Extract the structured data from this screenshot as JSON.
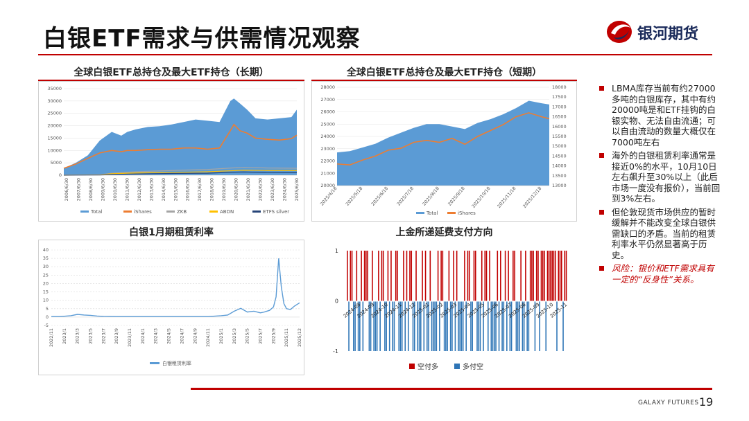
{
  "page": {
    "title": "白银ETF需求与供需情况观察",
    "logo_text": "银河期货",
    "footer": "GALAXY FUTURES",
    "page_number": "19"
  },
  "bullets": [
    {
      "text": "LBMA库存当前有约27000多吨的白银库存，其中有约20000吨是和ETF挂钩的白银实物、无法自由流通；可以自由流动的数量大概仅在7000吨左右",
      "risk": false
    },
    {
      "text": "海外的白银租赁利率通常是接近0%的水平，10月10日左右飙升至30%以上（此后市场一度没有报价），当前回到3%左右。",
      "risk": false
    },
    {
      "text": "但伦敦现货市场供应的暂时缓解并不能改变全球白银供需缺口的矛盾。当前的租赁利率水平仍然显著高于历史。",
      "risk": false
    },
    {
      "text": "风险：银价和ETF需求具有一定的“反身性”关系。",
      "risk": true
    }
  ],
  "colors": {
    "accent": "#c00000",
    "area": "#5b9bd5",
    "orange": "#ed7d31",
    "gray": "#a5a5a5",
    "yellow": "#ffc000",
    "navy": "#264478",
    "red_bar": "#c00000",
    "blue_bar": "#2e75b6"
  },
  "chart_data": [
    {
      "id": "long",
      "type": "area",
      "title": "全球白银ETF总持仓及最大ETF持仓（长期）",
      "y_ticks": [
        "0",
        "5000",
        "10000",
        "15000",
        "20000",
        "25000",
        "30000",
        "35000"
      ],
      "ylim": [
        0,
        35000
      ],
      "x_ticks": [
        "2006/6/30",
        "2007/6/30",
        "2008/6/30",
        "2009/6/30",
        "2010/6/30",
        "2011/6/30",
        "2012/6/30",
        "2013/6/30",
        "2014/6/30",
        "2015/6/30",
        "2016/6/30",
        "2017/6/30",
        "2018/6/30",
        "2019/6/30",
        "2020/6/30",
        "2021/6/30",
        "2022/6/30",
        "2023/6/30",
        "2024/6/30",
        "2025/6/30"
      ],
      "legend": [
        "Total",
        "iShares",
        "ZKB",
        "ABDN",
        "ETFS silver"
      ],
      "series": [
        {
          "name": "Total",
          "x": [
            2006.5,
            2007.5,
            2008.5,
            2009.5,
            2010.5,
            2011.3,
            2011.8,
            2012.5,
            2013.5,
            2014.5,
            2015.5,
            2016.5,
            2017.5,
            2018.5,
            2019.5,
            2020.4,
            2020.7,
            2021.2,
            2021.8,
            2022.5,
            2023.5,
            2024.5,
            2025.5,
            2025.95
          ],
          "values": [
            2800,
            5000,
            8000,
            14000,
            17500,
            16000,
            17500,
            18500,
            19500,
            19800,
            20500,
            21500,
            22500,
            22000,
            21500,
            30000,
            31000,
            29000,
            26500,
            23000,
            22500,
            23000,
            23500,
            26500
          ]
        },
        {
          "name": "iShares",
          "x": [
            2006.5,
            2007.5,
            2008.5,
            2009.5,
            2010.5,
            2011.3,
            2011.8,
            2012.5,
            2013.5,
            2014.5,
            2015.5,
            2016.5,
            2017.5,
            2018.5,
            2019.5,
            2020.4,
            2020.7,
            2021.2,
            2021.8,
            2022.5,
            2023.5,
            2024.5,
            2025.5,
            2025.95
          ],
          "values": [
            2800,
            4500,
            6800,
            9000,
            10000,
            9500,
            10000,
            10000,
            10300,
            10500,
            10500,
            11000,
            11000,
            10500,
            11000,
            18000,
            20500,
            18000,
            17000,
            15000,
            14500,
            14200,
            14800,
            16200
          ]
        },
        {
          "name": "ZKB",
          "x": [
            2006.5,
            2009.5,
            2010.5,
            2012.5,
            2015.5,
            2018.5,
            2020.5,
            2021.5,
            2023.5,
            2025.95
          ],
          "values": [
            0,
            200,
            800,
            1400,
            1900,
            2300,
            2900,
            3200,
            2900,
            2800
          ]
        },
        {
          "name": "ABDN",
          "x": [
            2006.5,
            2009.5,
            2010.5,
            2012.5,
            2015.5,
            2018.5,
            2020.5,
            2021.5,
            2023.5,
            2025.95
          ],
          "values": [
            0,
            100,
            600,
            900,
            1100,
            1400,
            1800,
            2000,
            1900,
            1900
          ]
        },
        {
          "name": "ETFS silver",
          "x": [
            2006.5,
            2009.5,
            2010.5,
            2012.5,
            2015.5,
            2018.5,
            2020.5,
            2021.5,
            2023.5,
            2025.95
          ],
          "values": [
            0,
            50,
            300,
            500,
            700,
            800,
            1200,
            1300,
            1100,
            1000
          ]
        }
      ]
    },
    {
      "id": "short",
      "type": "area",
      "title": "全球白银ETF总持仓及最大ETF持仓（短期）",
      "y_ticks": [
        "20000",
        "21000",
        "22000",
        "23000",
        "24000",
        "25000",
        "26000",
        "27000",
        "28000"
      ],
      "ylim": [
        20000,
        28000
      ],
      "y2_ticks": [
        "13000",
        "13500",
        "14000",
        "14500",
        "15000",
        "15500",
        "16000",
        "16500",
        "17000",
        "17500",
        "18000"
      ],
      "y2lim": [
        13000,
        18000
      ],
      "x_ticks": [
        "2025/4/18",
        "2025/5/18",
        "2025/6/18",
        "2025/7/18",
        "2025/8/18",
        "2025/9/18",
        "2025/10/18",
        "2025/11/18",
        "2025/12/18"
      ],
      "legend": [
        "Total",
        "iShares"
      ],
      "series": [
        {
          "name": "Total",
          "x": [
            0,
            0.5,
            1,
            1.5,
            2,
            2.5,
            3,
            3.5,
            4,
            4.5,
            5,
            5.5,
            6,
            6.5,
            7,
            7.5,
            8,
            8.3
          ],
          "values": [
            22700,
            22800,
            23100,
            23400,
            23900,
            24300,
            24700,
            25000,
            25000,
            24800,
            24600,
            25100,
            25400,
            25800,
            26300,
            26900,
            26700,
            26600
          ]
        },
        {
          "name": "iShares",
          "y_axis": "right",
          "x": [
            0,
            0.5,
            1,
            1.5,
            2,
            2.5,
            3,
            3.5,
            4,
            4.5,
            5,
            5.5,
            6,
            6.5,
            7,
            7.5,
            8,
            8.3
          ],
          "values": [
            14100,
            14050,
            14300,
            14500,
            14800,
            14900,
            15200,
            15300,
            15200,
            15400,
            15100,
            15500,
            15800,
            16100,
            16500,
            16700,
            16500,
            16400
          ]
        }
      ]
    },
    {
      "id": "lease",
      "type": "line",
      "title": "白银1月期租赁利率",
      "y_ticks": [
        "-5",
        "0",
        "5",
        "10",
        "15",
        "20",
        "25",
        "30",
        "35",
        "40"
      ],
      "ylim": [
        -5,
        40
      ],
      "x_ticks": [
        "2022/11",
        "2023/1",
        "2023/3",
        "2023/5",
        "2023/7",
        "2023/9",
        "2023/11",
        "2024/1",
        "2024/3",
        "2024/5",
        "2024/7",
        "2024/9",
        "2024/11",
        "2025/1",
        "2025/3",
        "2025/5",
        "2025/7",
        "2025/9",
        "2025/11",
        "2025/12"
      ],
      "legend": [
        "白银租赁利率"
      ],
      "series": [
        {
          "name": "白银租赁利率",
          "x": [
            0,
            0.6,
            1,
            1.5,
            2,
            2.5,
            3,
            3.5,
            4,
            5,
            6,
            7,
            8,
            9,
            10,
            11,
            12,
            13,
            13.5,
            14,
            14.5,
            15,
            15.5,
            16,
            16.3,
            16.7,
            17,
            17.2,
            17.4,
            17.6,
            17.8,
            18,
            18.3,
            18.6,
            19
          ],
          "values": [
            0.3,
            0.3,
            0.5,
            0.8,
            1.6,
            1.2,
            1.0,
            0.6,
            0.4,
            0.3,
            0.3,
            0.3,
            0.3,
            0.3,
            0.3,
            0.3,
            0.3,
            0.8,
            1.2,
            3.5,
            5.2,
            3.0,
            3.5,
            2.5,
            3.0,
            4.0,
            6.0,
            12.0,
            35.0,
            18.0,
            8.0,
            5.0,
            4.5,
            6.5,
            8.5
          ]
        }
      ]
    },
    {
      "id": "payment",
      "type": "bar",
      "title": "上金所递延费支付方向",
      "y_ticks": [
        "-1",
        "0",
        "1"
      ],
      "ylim": [
        -1,
        1
      ],
      "x_ticks": [
        "2024-08",
        "2024-09",
        "2024-10",
        "2024-11",
        "2024-12",
        "2025-01",
        "2025-02",
        "2025-03",
        "2025-04",
        "2025-05",
        "2025-06",
        "2025-07",
        "2025-08",
        "2025-09",
        "2025-10",
        "2025-11"
      ],
      "legend": [
        "空付多",
        "多付空"
      ],
      "values": [
        1,
        -1,
        1,
        1,
        -1,
        -1,
        1,
        -1,
        -1,
        1,
        -1,
        1,
        1,
        1,
        -1,
        -1,
        1,
        -1,
        -1,
        -1,
        1,
        -1,
        1,
        1,
        -1,
        -1,
        1,
        -1,
        1,
        -1,
        -1,
        1,
        1,
        -1,
        -1,
        -1,
        1,
        -1,
        1,
        -1,
        1,
        1,
        -1,
        -1,
        1,
        -1,
        -1,
        -1,
        1,
        -1,
        1,
        -1,
        -1,
        1,
        -1,
        -1,
        -1,
        -1,
        1,
        -1,
        1,
        1,
        -1,
        -1,
        -1,
        1,
        -1,
        -1,
        1,
        -1,
        1,
        -1,
        -1,
        -1,
        -1,
        1,
        -1,
        1,
        1,
        -1,
        -1,
        1,
        1,
        -1,
        -1,
        -1,
        1,
        -1,
        1,
        1,
        -1,
        1,
        -1,
        -1,
        -1,
        -1,
        1,
        -1,
        1,
        -1,
        -1,
        1,
        -1,
        1,
        -1,
        -1,
        1,
        1,
        -1,
        -1,
        -1,
        1,
        -1,
        -1,
        1,
        -1,
        -1,
        1,
        1,
        1,
        -1,
        1,
        1,
        -1,
        1,
        1,
        1,
        -1,
        1,
        1,
        1,
        1,
        1,
        1,
        -1,
        1,
        1,
        1,
        -1,
        1,
        1
      ]
    }
  ]
}
